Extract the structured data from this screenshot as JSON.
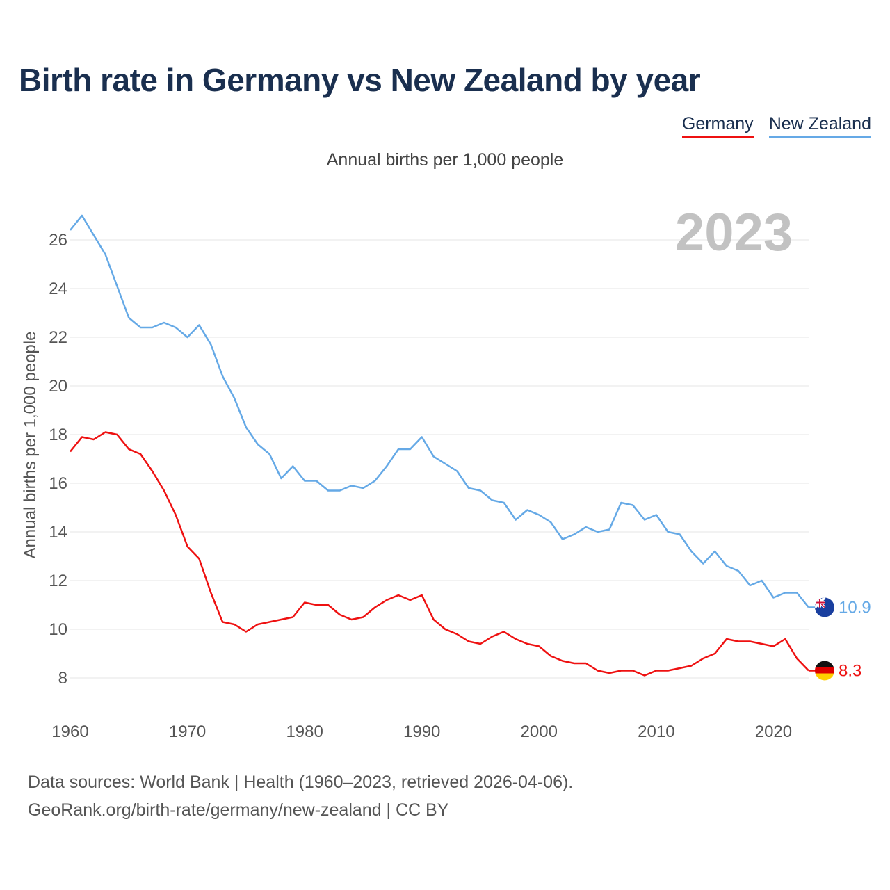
{
  "title": "Birth rate in Germany vs New Zealand by year",
  "legend": {
    "germany": "Germany",
    "new_zealand": "New Zealand"
  },
  "subtitle": "Annual births per 1,000 people",
  "year_watermark": "2023",
  "sources": {
    "line1": "Data sources: World Bank | Health (1960–2023, retrieved 2026-04-06).",
    "line2": "GeoRank.org/birth-rate/germany/new-zealand | CC BY"
  },
  "colors": {
    "germany": "#ee1111",
    "new_zealand": "#65a9e6",
    "grid": "#e6e6e6",
    "axis_text": "#555555"
  },
  "chart_data": {
    "type": "line",
    "title": "Birth rate in Germany vs New Zealand by year",
    "xlabel": "",
    "ylabel": "Annual births per 1,000 people",
    "xlim": [
      1960,
      2023
    ],
    "ylim": [
      7,
      27
    ],
    "x_ticks": [
      1960,
      1970,
      1980,
      1990,
      2000,
      2010,
      2020
    ],
    "y_ticks": [
      8,
      10,
      12,
      14,
      16,
      18,
      20,
      22,
      24,
      26
    ],
    "grid": true,
    "legend_position": "top-right",
    "x": [
      1960,
      1961,
      1962,
      1963,
      1964,
      1965,
      1966,
      1967,
      1968,
      1969,
      1970,
      1971,
      1972,
      1973,
      1974,
      1975,
      1976,
      1977,
      1978,
      1979,
      1980,
      1981,
      1982,
      1983,
      1984,
      1985,
      1986,
      1987,
      1988,
      1989,
      1990,
      1991,
      1992,
      1993,
      1994,
      1995,
      1996,
      1997,
      1998,
      1999,
      2000,
      2001,
      2002,
      2003,
      2004,
      2005,
      2006,
      2007,
      2008,
      2009,
      2010,
      2011,
      2012,
      2013,
      2014,
      2015,
      2016,
      2017,
      2018,
      2019,
      2020,
      2021,
      2022,
      2023
    ],
    "series": [
      {
        "name": "Germany",
        "color": "#ee1111",
        "end_label": "8.3",
        "values": [
          17.3,
          17.9,
          17.8,
          18.1,
          18.0,
          17.4,
          17.2,
          16.5,
          15.7,
          14.7,
          13.4,
          12.9,
          11.5,
          10.3,
          10.2,
          9.9,
          10.2,
          10.3,
          10.4,
          10.5,
          11.1,
          11.0,
          11.0,
          10.6,
          10.4,
          10.5,
          10.9,
          11.2,
          11.4,
          11.2,
          11.4,
          10.4,
          10.0,
          9.8,
          9.5,
          9.4,
          9.7,
          9.9,
          9.6,
          9.4,
          9.3,
          8.9,
          8.7,
          8.6,
          8.6,
          8.3,
          8.2,
          8.3,
          8.3,
          8.1,
          8.3,
          8.3,
          8.4,
          8.5,
          8.8,
          9.0,
          9.6,
          9.5,
          9.5,
          9.4,
          9.3,
          9.6,
          8.8,
          8.3
        ]
      },
      {
        "name": "New Zealand",
        "color": "#65a9e6",
        "end_label": "10.9",
        "values": [
          26.4,
          27.0,
          26.2,
          25.4,
          24.1,
          22.8,
          22.4,
          22.4,
          22.6,
          22.4,
          22.0,
          22.5,
          21.7,
          20.4,
          19.5,
          18.3,
          17.6,
          17.2,
          16.2,
          16.7,
          16.1,
          16.1,
          15.7,
          15.7,
          15.9,
          15.8,
          16.1,
          16.7,
          17.4,
          17.4,
          17.9,
          17.1,
          16.8,
          16.5,
          15.8,
          15.7,
          15.3,
          15.2,
          14.5,
          14.9,
          14.7,
          14.4,
          13.7,
          13.9,
          14.2,
          14.0,
          14.1,
          15.2,
          15.1,
          14.5,
          14.7,
          14.0,
          13.9,
          13.2,
          12.7,
          13.2,
          12.6,
          12.4,
          11.8,
          12.0,
          11.3,
          11.5,
          11.5,
          10.9
        ]
      }
    ]
  }
}
